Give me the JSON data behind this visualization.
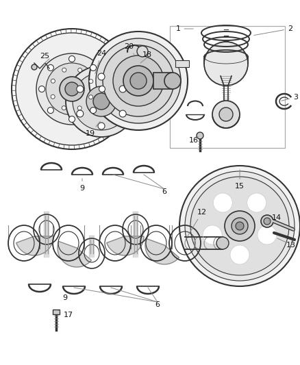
{
  "bg_color": "#ffffff",
  "lc": "#333333",
  "figsize": [
    4.38,
    5.33
  ],
  "dpi": 100,
  "font_size": 8.0
}
